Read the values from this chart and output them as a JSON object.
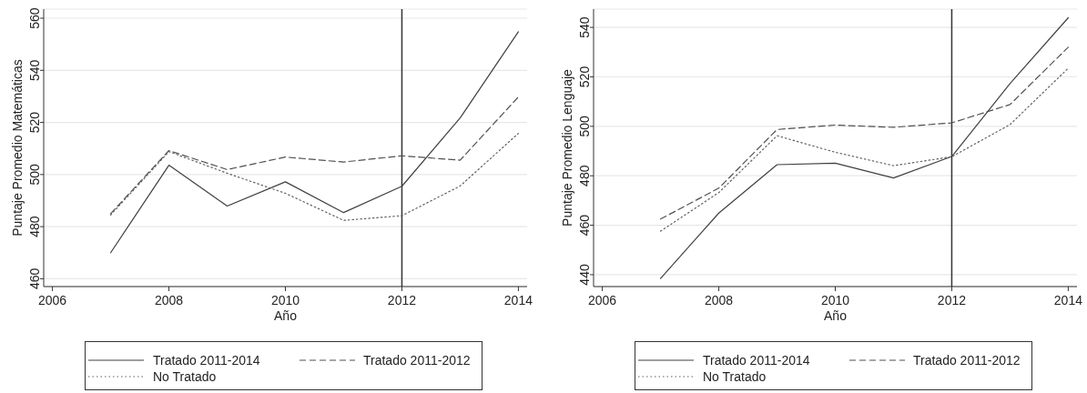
{
  "chart_data": [
    {
      "type": "line",
      "xlabel": "Año",
      "ylabel": "Puntaje Promedio Matemáticas",
      "x": [
        2007,
        2008,
        2009,
        2010,
        2011,
        2012,
        2013,
        2014
      ],
      "series": [
        {
          "name": "Tratado 2011-2014",
          "color": "#404040",
          "line_style": "solid",
          "values": [
            470.0,
            503.6,
            487.9,
            497.2,
            485.4,
            495.5,
            521.7,
            554.8
          ]
        },
        {
          "name": "Tratado 2011-2012",
          "color": "#505050",
          "line_style": "dashed",
          "values": [
            485.0,
            509.2,
            501.9,
            506.7,
            504.8,
            507.2,
            505.5,
            529.8
          ]
        },
        {
          "name": "No Tratado",
          "color": "#606060",
          "line_style": "dotted",
          "values": [
            484.5,
            508.8,
            500.5,
            492.8,
            482.4,
            484.2,
            495.6,
            515.8
          ]
        }
      ],
      "xlim": [
        2005.85,
        2014.15
      ],
      "xticks": [
        2006,
        2008,
        2010,
        2012,
        2014
      ],
      "ylim": [
        457,
        563.5
      ],
      "yticks": [
        460,
        480,
        500,
        520,
        540,
        560
      ],
      "grid": "y",
      "legend": "bottom",
      "ref_lines": [
        {
          "axis": "x",
          "value": 2012,
          "color": "#333333"
        }
      ]
    },
    {
      "type": "line",
      "xlabel": "Año",
      "ylabel": "Puntaje Promedio Lenguaje",
      "x": [
        2007,
        2008,
        2009,
        2010,
        2011,
        2012,
        2013,
        2014
      ],
      "series": [
        {
          "name": "Tratado 2011-2014",
          "color": "#404040",
          "line_style": "solid",
          "values": [
            438.5,
            464.9,
            484.5,
            485.1,
            479.1,
            487.8,
            517.3,
            543.9
          ]
        },
        {
          "name": "Tratado 2011-2012",
          "color": "#505050",
          "line_style": "dashed",
          "values": [
            462.5,
            475.0,
            498.7,
            500.5,
            499.6,
            501.4,
            508.8,
            532.0
          ]
        },
        {
          "name": "No Tratado",
          "color": "#606060",
          "line_style": "dotted",
          "values": [
            457.6,
            473.2,
            496.2,
            489.5,
            484.1,
            487.7,
            500.7,
            523.5
          ]
        }
      ],
      "xlim": [
        2005.85,
        2014.15
      ],
      "xticks": [
        2006,
        2008,
        2010,
        2012,
        2014
      ],
      "ylim": [
        435.2,
        547.4
      ],
      "yticks": [
        440,
        460,
        480,
        500,
        520,
        540
      ],
      "grid": "y",
      "legend": "bottom",
      "ref_lines": [
        {
          "axis": "x",
          "value": 2012,
          "color": "#333333"
        }
      ]
    }
  ]
}
